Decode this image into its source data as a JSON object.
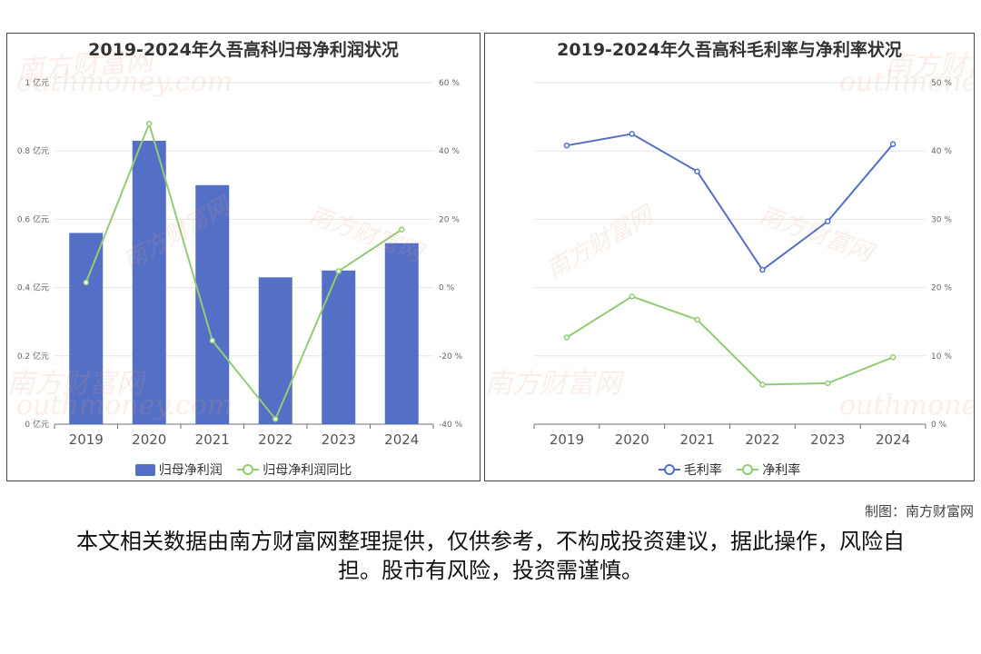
{
  "colors": {
    "blue": "#5470c6",
    "green": "#91cc75",
    "grid": "#e6e6e6",
    "axis": "#666666"
  },
  "watermark": {
    "cn": "南方财富网",
    "en": "Southmoney.com"
  },
  "credit": "制图：南方财富网",
  "disclaimer": "本文相关数据由南方财富网整理提供，仅供参考，不构成投资建议，据此操作，风险自担。股市有风险，投资需谨慎。",
  "chart_data": [
    {
      "type": "bar",
      "title": "2019-2024年久吾高科归母净利润状况",
      "categories": [
        "2019",
        "2020",
        "2021",
        "2022",
        "2023",
        "2024"
      ],
      "y_ticks": [
        "0 亿元",
        "0.2 亿元",
        "0.4 亿元",
        "0.6 亿元",
        "0.8 亿元",
        "1 亿元"
      ],
      "y2_ticks": [
        "-40 %",
        "-20 %",
        "0 %",
        "20 %",
        "40 %",
        "60 %"
      ],
      "ylim": [
        0,
        1
      ],
      "y2lim": [
        -40,
        60
      ],
      "series": [
        {
          "name": "归母净利润",
          "type": "bar",
          "axis": "left",
          "values": [
            0.56,
            0.83,
            0.7,
            0.43,
            0.45,
            0.53
          ]
        },
        {
          "name": "归母净利润同比",
          "type": "line",
          "axis": "right",
          "values": [
            1.5,
            48.0,
            -15.5,
            -38.5,
            4.8,
            17.0
          ]
        }
      ],
      "grid": true,
      "legend_position": "bottom"
    },
    {
      "type": "line",
      "title": "2019-2024年久吾高科毛利率与净利率状况",
      "categories": [
        "2019",
        "2020",
        "2021",
        "2022",
        "2023",
        "2024"
      ],
      "y_ticks": [
        "0 %",
        "10 %",
        "20 %",
        "30 %",
        "40 %",
        "50 %"
      ],
      "ylim": [
        0,
        50
      ],
      "series": [
        {
          "name": "毛利率",
          "values": [
            40.8,
            42.5,
            37.0,
            22.6,
            29.7,
            41.0
          ]
        },
        {
          "name": "净利率",
          "values": [
            12.7,
            18.7,
            15.3,
            5.8,
            6.0,
            9.8
          ]
        }
      ],
      "grid": true,
      "legend_position": "bottom"
    }
  ]
}
